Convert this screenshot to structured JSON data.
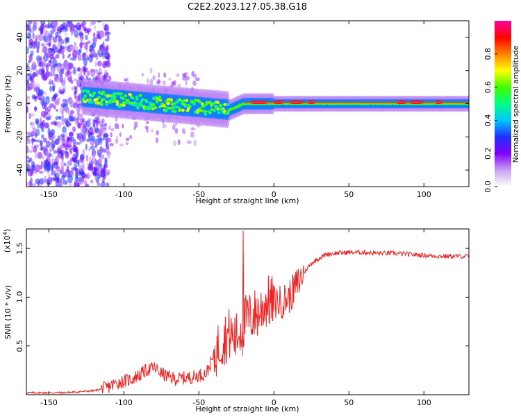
{
  "title": "C2E2.2023.127.05.38.G18",
  "chart_data": [
    {
      "type": "heatmap",
      "xlabel": "Height of straight line (km)",
      "ylabel": "Frequency (Hz)",
      "xlim": [
        -165,
        130
      ],
      "ylim": [
        -50,
        50
      ],
      "xticks": [
        -150,
        -100,
        -50,
        0,
        50,
        100
      ],
      "yticks": [
        -40,
        -20,
        0,
        20,
        40
      ],
      "grid": false,
      "colorbar": {
        "label": "Normalized spectral amplitude",
        "range": [
          0,
          1
        ],
        "ticks": [
          "0.0",
          "0.2",
          "0.4",
          "0.6",
          "0.8"
        ],
        "colormap": [
          "#ffffff",
          "#c8a0f0",
          "#8000ff",
          "#2030ff",
          "#00c8ff",
          "#00ff80",
          "#40ff00",
          "#ffff00",
          "#ff8000",
          "#ff0000",
          "#ff00a0"
        ]
      }
    },
    {
      "type": "line",
      "xlabel": "Height of straight line (km)",
      "ylabel": "SNR (10 * v/v)",
      "y_multiplier": "(x10^4)",
      "y_multiplier_base": "(x10",
      "y_multiplier_exp": "4",
      "y_multiplier_close": ")",
      "xlim": [
        -165,
        130
      ],
      "ylim": [
        0,
        1.7
      ],
      "xticks": [
        -150,
        -100,
        -50,
        0,
        50,
        100
      ],
      "yticks": [
        0.5,
        1.0,
        1.5
      ],
      "color": "#ee2222",
      "grid": false,
      "series": [
        {
          "x": [
            -165,
            -140,
            -120,
            -112,
            -105,
            -100,
            -95,
            -90,
            -85,
            -80,
            -75,
            -70,
            -65,
            -60,
            -55,
            -50,
            -45,
            -40,
            -35,
            -30,
            -25,
            -20,
            -15,
            -10,
            -5,
            0,
            5,
            10,
            15,
            20,
            25,
            30,
            35,
            40,
            50,
            60,
            70,
            80,
            90,
            100,
            110,
            120,
            130
          ],
          "y": [
            0.02,
            0.02,
            0.04,
            0.07,
            0.12,
            0.14,
            0.16,
            0.2,
            0.25,
            0.28,
            0.22,
            0.18,
            0.16,
            0.17,
            0.18,
            0.2,
            0.22,
            0.4,
            0.55,
            0.62,
            0.58,
            0.75,
            0.8,
            0.85,
            0.95,
            0.95,
            0.95,
            1.0,
            1.12,
            1.25,
            1.35,
            1.4,
            1.44,
            1.45,
            1.46,
            1.46,
            1.45,
            1.45,
            1.44,
            1.43,
            1.42,
            1.42,
            1.42
          ]
        }
      ]
    }
  ]
}
